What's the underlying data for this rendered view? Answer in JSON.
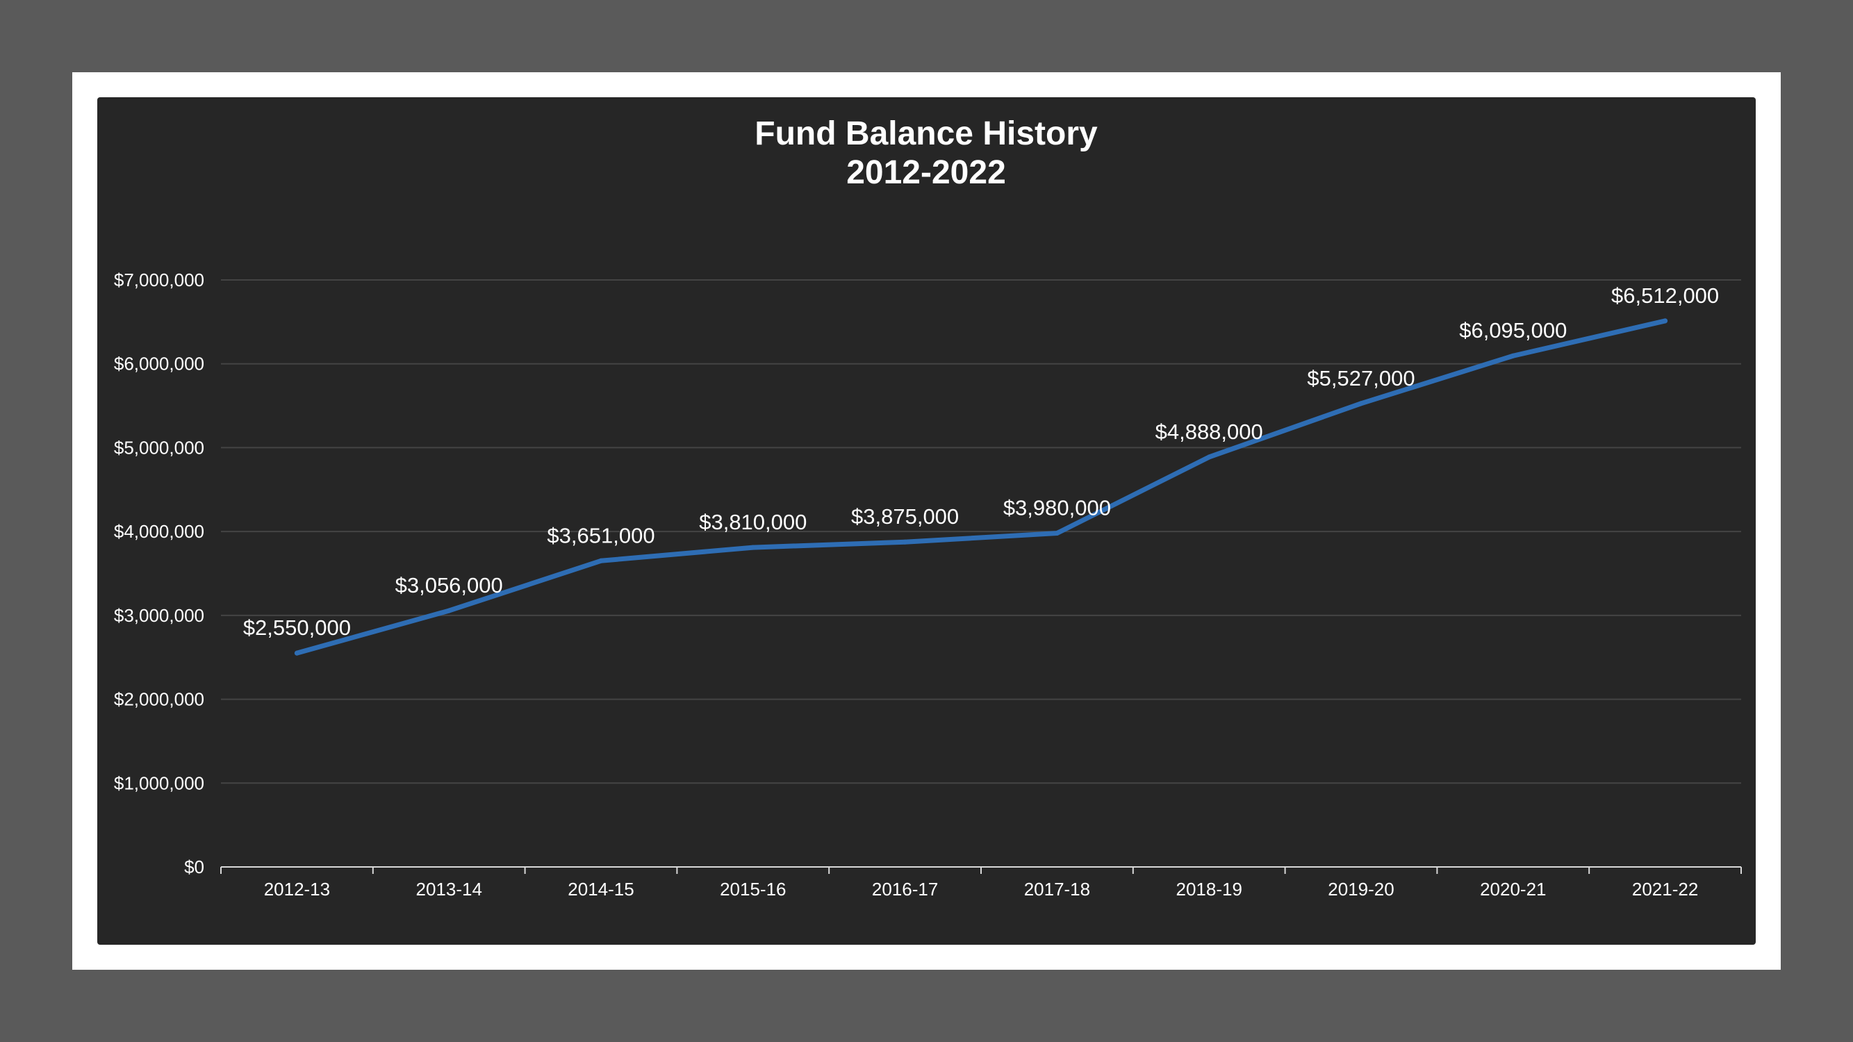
{
  "chart_data": {
    "type": "line",
    "title": "Fund Balance History",
    "subtitle": "2012-2022",
    "xlabel": "",
    "ylabel": "",
    "categories": [
      "2012-13",
      "2013-14",
      "2014-15",
      "2015-16",
      "2016-17",
      "2017-18",
      "2018-19",
      "2019-20",
      "2020-21",
      "2021-22"
    ],
    "series": [
      {
        "values": [
          2550000,
          3056000,
          3651000,
          3810000,
          3875000,
          3980000,
          4888000,
          5527000,
          6095000,
          6512000
        ],
        "data_labels": [
          "$2,550,000",
          "$3,056,000",
          "$3,651,000",
          "$3,810,000",
          "$3,875,000",
          "$3,980,000",
          "$4,888,000",
          "$5,527,000",
          "$6,095,000",
          "$6,512,000"
        ],
        "color": "#2e6db4"
      }
    ],
    "ylim": [
      0,
      7000000
    ],
    "yticks": [
      0,
      1000000,
      2000000,
      3000000,
      4000000,
      5000000,
      6000000,
      7000000
    ],
    "ytick_labels": [
      "$0",
      "$1,000,000",
      "$2,000,000",
      "$3,000,000",
      "$4,000,000",
      "$5,000,000",
      "$6,000,000",
      "$7,000,000"
    ],
    "grid": true,
    "legend": "none",
    "colors": {
      "background": "#262626",
      "gridline": "#444444",
      "axis": "#d9d9d9",
      "text": "#ffffff"
    }
  }
}
